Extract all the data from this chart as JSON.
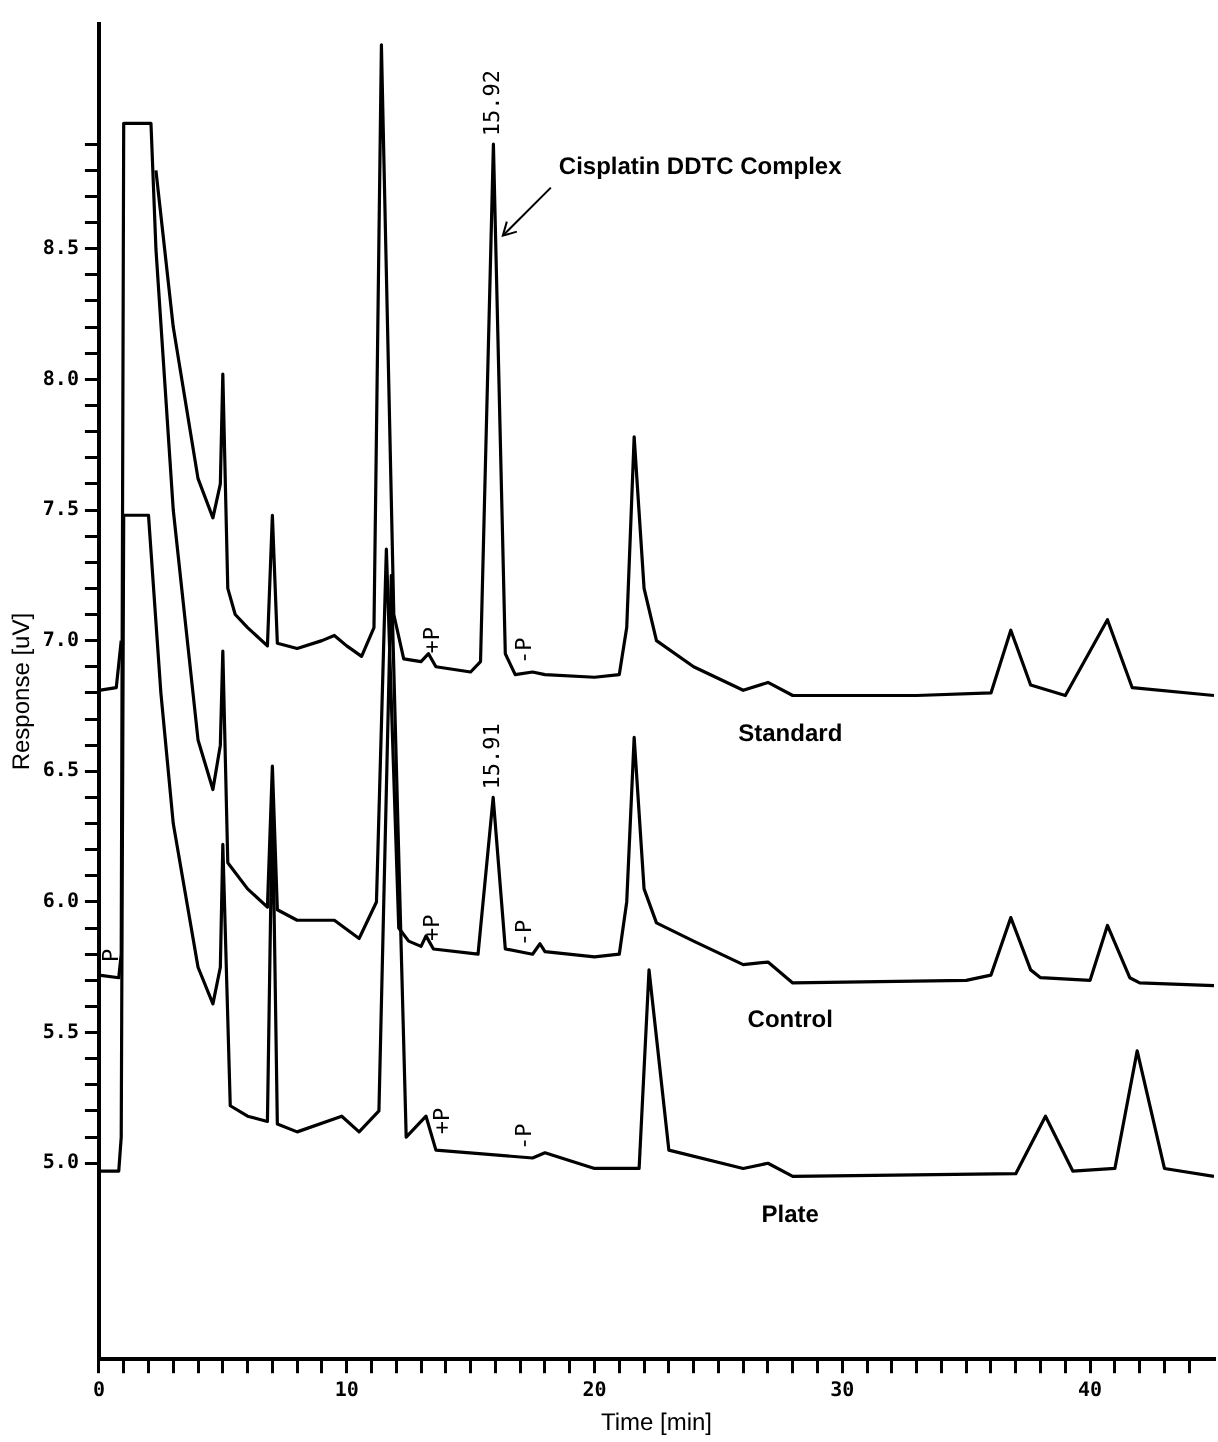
{
  "chart_data": {
    "type": "line",
    "xlabel": "Time [min]",
    "ylabel": "Response [uV]",
    "xlim": [
      0,
      45
    ],
    "ylim": [
      4.25,
      9.36
    ],
    "xticks": [
      0,
      {
        "value": 1,
        "label": null
      },
      {
        "value": 2,
        "label": null
      },
      {
        "value": 3,
        "label": null
      },
      {
        "value": 4,
        "label": null
      },
      {
        "value": 5,
        "label": null
      },
      {
        "value": 6,
        "label": null
      },
      {
        "value": 7,
        "label": null
      },
      {
        "value": 8,
        "label": null
      },
      {
        "value": 9,
        "label": null
      },
      10,
      {
        "value": 11,
        "label": null
      },
      {
        "value": 12,
        "label": null
      },
      {
        "value": 13,
        "label": null
      },
      {
        "value": 14,
        "label": null
      },
      {
        "value": 15,
        "label": null
      },
      {
        "value": 16,
        "label": null
      },
      {
        "value": 17,
        "label": null
      },
      {
        "value": 18,
        "label": null
      },
      {
        "value": 19,
        "label": null
      },
      20,
      {
        "value": 21,
        "label": null
      },
      {
        "value": 22,
        "label": null
      },
      {
        "value": 23,
        "label": null
      },
      {
        "value": 24,
        "label": null
      },
      {
        "value": 25,
        "label": null
      },
      {
        "value": 26,
        "label": null
      },
      {
        "value": 27,
        "label": null
      },
      {
        "value": 28,
        "label": null
      },
      {
        "value": 29,
        "label": null
      },
      30,
      {
        "value": 31,
        "label": null
      },
      {
        "value": 32,
        "label": null
      },
      {
        "value": 33,
        "label": null
      },
      {
        "value": 34,
        "label": null
      },
      {
        "value": 35,
        "label": null
      },
      {
        "value": 36,
        "label": null
      },
      {
        "value": 37,
        "label": null
      },
      {
        "value": 38,
        "label": null
      },
      {
        "value": 39,
        "label": null
      },
      40,
      {
        "value": 41,
        "label": null
      },
      {
        "value": 42,
        "label": null
      },
      {
        "value": 43,
        "label": null
      },
      {
        "value": 44,
        "label": null
      }
    ],
    "yticks": [
      {
        "value": 5,
        "label": "5.0"
      },
      {
        "value": 5.1,
        "label": null
      },
      {
        "value": 5.2,
        "label": null
      },
      {
        "value": 5.3,
        "label": null
      },
      {
        "value": 5.4,
        "label": null
      },
      {
        "value": 5.5,
        "label": "5.5"
      },
      {
        "value": 5.6,
        "label": null
      },
      {
        "value": 5.7,
        "label": null
      },
      {
        "value": 5.8,
        "label": null
      },
      {
        "value": 5.9,
        "label": null
      },
      {
        "value": 6,
        "label": "6.0"
      },
      {
        "value": 6.1,
        "label": null
      },
      {
        "value": 6.2,
        "label": null
      },
      {
        "value": 6.3,
        "label": null
      },
      {
        "value": 6.4,
        "label": null
      },
      {
        "value": 6.5,
        "label": "6.5"
      },
      {
        "value": 6.6,
        "label": null
      },
      {
        "value": 6.7,
        "label": null
      },
      {
        "value": 6.8,
        "label": null
      },
      {
        "value": 6.9,
        "label": null
      },
      {
        "value": 7,
        "label": "7.0"
      },
      {
        "value": 7.1,
        "label": null
      },
      {
        "value": 7.2,
        "label": null
      },
      {
        "value": 7.3,
        "label": null
      },
      {
        "value": 7.4,
        "label": null
      },
      {
        "value": 7.5,
        "label": "7.5"
      },
      {
        "value": 7.6,
        "label": null
      },
      {
        "value": 7.7,
        "label": null
      },
      {
        "value": 7.8,
        "label": null
      },
      {
        "value": 7.9,
        "label": null
      },
      {
        "value": 8,
        "label": "8.0"
      },
      {
        "value": 8.1,
        "label": null
      },
      {
        "value": 8.2,
        "label": null
      },
      {
        "value": 8.3,
        "label": null
      },
      {
        "value": 8.4,
        "label": null
      },
      {
        "value": 8.5,
        "label": "8.5"
      },
      {
        "value": 8.6,
        "label": null
      },
      {
        "value": 8.7,
        "label": null
      },
      {
        "value": 8.8,
        "label": null
      },
      {
        "value": 8.9,
        "label": null
      }
    ],
    "grid": false,
    "legend": false,
    "marker": "none",
    "line_style": "solid",
    "series": [
      {
        "name": "Standard",
        "color": "#000000",
        "x": [
          0,
          0.7,
          0.9,
          1.0,
          2.1,
          2.3,
          3,
          4,
          4.6,
          4.9,
          5.0,
          5.2,
          5.5,
          6,
          6.8,
          7.0,
          7.2,
          8,
          9,
          9.5,
          10,
          10.6,
          11.1,
          11.4,
          11.9,
          12.3,
          13,
          13.3,
          13.6,
          15,
          15.4,
          15.92,
          16.4,
          16.8,
          17.5,
          18,
          20,
          21,
          21.3,
          21.6,
          22,
          22.5,
          24,
          26,
          27,
          28,
          33,
          36,
          36.8,
          37.6,
          39,
          40.7,
          41.7,
          45
        ],
        "values": [
          6.81,
          6.82,
          7.0,
          null,
          null,
          8.8,
          8.2,
          7.62,
          7.47,
          7.6,
          8.02,
          7.2,
          7.1,
          7.05,
          6.98,
          7.48,
          6.99,
          6.97,
          7.0,
          7.02,
          6.98,
          6.94,
          7.05,
          9.28,
          7.1,
          6.93,
          6.92,
          6.95,
          6.9,
          6.88,
          6.92,
          8.9,
          6.95,
          6.87,
          6.88,
          6.87,
          6.86,
          6.87,
          7.05,
          7.78,
          7.2,
          7.0,
          6.9,
          6.81,
          6.84,
          6.79,
          6.79,
          6.8,
          7.04,
          6.83,
          6.79,
          7.08,
          6.82,
          6.79
        ]
      },
      {
        "name": "Control",
        "color": "#000000",
        "x": [
          0,
          0.8,
          0.9,
          1.0,
          2.1,
          2.3,
          3,
          4,
          4.6,
          4.9,
          5.0,
          5.2,
          6,
          6.8,
          7.0,
          7.2,
          8,
          9.5,
          10.5,
          11.2,
          11.6,
          12.1,
          12.5,
          13,
          13.2,
          13.5,
          15.3,
          15.91,
          16.4,
          17.5,
          17.8,
          18,
          20,
          21,
          21.3,
          21.6,
          22,
          22.5,
          24,
          26,
          27,
          28,
          35,
          36,
          36.8,
          37.6,
          38,
          40,
          40.7,
          41.6,
          42,
          45
        ],
        "values": [
          5.72,
          5.71,
          5.8,
          8.98,
          8.98,
          8.5,
          7.5,
          6.62,
          6.43,
          6.6,
          6.96,
          6.15,
          6.05,
          5.98,
          6.52,
          5.97,
          5.93,
          5.93,
          5.86,
          6.0,
          7.35,
          5.9,
          5.85,
          5.83,
          5.87,
          5.82,
          5.8,
          6.4,
          5.82,
          5.8,
          5.84,
          5.81,
          5.79,
          5.8,
          6.0,
          6.63,
          6.05,
          5.92,
          5.85,
          5.76,
          5.77,
          5.69,
          5.7,
          5.72,
          5.94,
          5.74,
          5.71,
          5.7,
          5.91,
          5.71,
          5.69,
          5.68
        ]
      },
      {
        "name": "Plate",
        "color": "#000000",
        "x": [
          0,
          0.8,
          0.9,
          1.0,
          2.0,
          2.5,
          3,
          4,
          4.6,
          4.9,
          5.0,
          5.3,
          6,
          6.8,
          7.0,
          7.2,
          8,
          9.8,
          10.5,
          11.3,
          11.8,
          12.4,
          13.2,
          13.6,
          17.5,
          18,
          20,
          21.8,
          22.2,
          23,
          26,
          27,
          28,
          37,
          38.2,
          39.3,
          41,
          41.9,
          43,
          45
        ],
        "values": [
          4.97,
          4.97,
          5.1,
          7.48,
          7.48,
          6.8,
          6.3,
          5.75,
          5.61,
          5.75,
          6.22,
          5.22,
          5.18,
          5.16,
          6.4,
          5.15,
          5.12,
          5.18,
          5.12,
          5.2,
          7.25,
          5.1,
          5.18,
          5.05,
          5.02,
          5.04,
          4.98,
          4.98,
          5.74,
          5.05,
          4.98,
          5.0,
          4.95,
          4.96,
          5.18,
          4.97,
          4.98,
          5.43,
          4.98,
          4.95
        ]
      }
    ],
    "annotations": [
      {
        "text": "15.92",
        "x": 15.92,
        "y": 8.9
      },
      {
        "text": "Cisplatin DDTC Complex",
        "x": 16.3,
        "y": 8.55
      },
      {
        "text": "15.91",
        "x": 15.91,
        "y": 6.4
      },
      {
        "text": "+P",
        "x": 13.5,
        "y": 6.92
      },
      {
        "text": "-P",
        "x": 17.2,
        "y": 6.88
      },
      {
        "text": "+P",
        "x": 13.5,
        "y": 5.82
      },
      {
        "text": "-P",
        "x": 17.2,
        "y": 5.8
      },
      {
        "text": "+P",
        "x": 13.9,
        "y": 5.08
      },
      {
        "text": "-P",
        "x": 17.2,
        "y": 5.02
      },
      {
        "text": "P",
        "x": 0.55,
        "y": 5.74
      }
    ]
  }
}
